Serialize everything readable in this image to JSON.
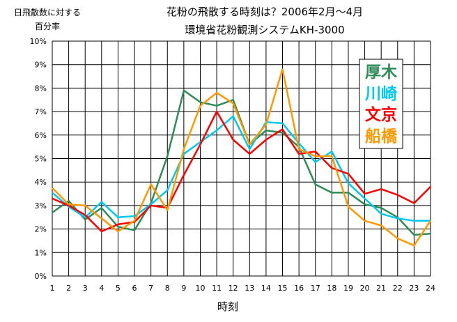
{
  "chart_data": {
    "type": "line",
    "title": "花粉の飛散する時刻は？2006年2月～4月",
    "subtitle": "環境省花粉観測システムKH-3000",
    "ylabel": [
      "日飛散数に対する",
      "百分率"
    ],
    "xlabel": "時刻",
    "ylim": [
      0,
      10
    ],
    "yticks": [
      "0%",
      "1%",
      "2%",
      "3%",
      "4%",
      "5%",
      "6%",
      "7%",
      "8%",
      "9%",
      "10%"
    ],
    "x": [
      1,
      2,
      3,
      4,
      5,
      6,
      7,
      8,
      9,
      10,
      11,
      12,
      13,
      14,
      15,
      16,
      17,
      18,
      19,
      20,
      21,
      22,
      23,
      24
    ],
    "grid": true,
    "legend_position": "right",
    "series": [
      {
        "name": "厚木",
        "color": "#2e8b57",
        "values": [
          2.7,
          3.2,
          2.4,
          2.9,
          2.1,
          1.95,
          3.1,
          5.1,
          7.9,
          7.4,
          7.25,
          7.5,
          5.6,
          6.2,
          6.1,
          5.5,
          3.9,
          3.55,
          3.55,
          3.05,
          2.9,
          2.5,
          1.75,
          1.8
        ]
      },
      {
        "name": "川崎",
        "color": "#00c8f0",
        "values": [
          3.55,
          2.95,
          2.5,
          3.15,
          2.5,
          2.55,
          3.05,
          3.65,
          5.2,
          5.7,
          6.2,
          6.8,
          5.4,
          6.55,
          6.5,
          5.65,
          4.85,
          5.3,
          3.95,
          3.3,
          2.65,
          2.45,
          2.35,
          2.35
        ]
      },
      {
        "name": "文京",
        "color": "#ff0000",
        "values": [
          3.3,
          3.0,
          2.6,
          1.9,
          2.2,
          2.3,
          3.0,
          2.9,
          4.3,
          5.6,
          7.0,
          5.8,
          5.2,
          5.8,
          6.25,
          5.2,
          5.3,
          4.6,
          4.35,
          3.5,
          3.7,
          3.45,
          3.1,
          3.8
        ]
      },
      {
        "name": "船橋",
        "color": "#ff9900",
        "values": [
          3.75,
          3.05,
          3.0,
          2.45,
          1.9,
          2.35,
          3.9,
          2.8,
          5.4,
          7.25,
          7.8,
          7.35,
          5.6,
          6.45,
          8.8,
          5.4,
          5.1,
          5.1,
          2.95,
          2.35,
          2.15,
          1.6,
          1.3,
          2.35
        ]
      }
    ]
  }
}
